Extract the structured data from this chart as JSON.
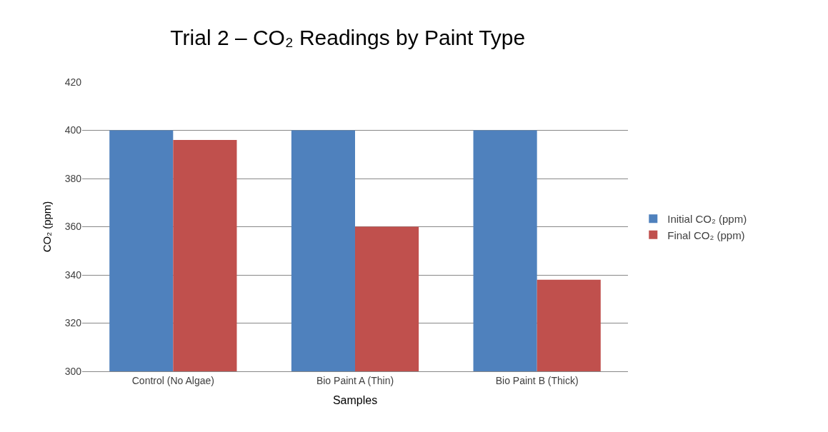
{
  "chart_data": {
    "type": "bar",
    "title": "Trial 2 – CO₂ Readings by Paint Type",
    "xlabel": "Samples",
    "ylabel": "CO₂ (ppm)",
    "categories": [
      "Control (No Algae)",
      "Bio Paint A (Thin)",
      "Bio Paint B (Thick)"
    ],
    "series": [
      {
        "name": "Initial CO₂ (ppm)",
        "color": "#4f81bd",
        "values": [
          400,
          400,
          400
        ]
      },
      {
        "name": "Final CO₂ (ppm)",
        "color": "#c0504d",
        "values": [
          396,
          360,
          338
        ]
      }
    ],
    "ylim": [
      300,
      420
    ],
    "yticks": [
      300,
      320,
      340,
      360,
      380,
      400,
      420
    ],
    "grid": "y",
    "legend": "right"
  }
}
